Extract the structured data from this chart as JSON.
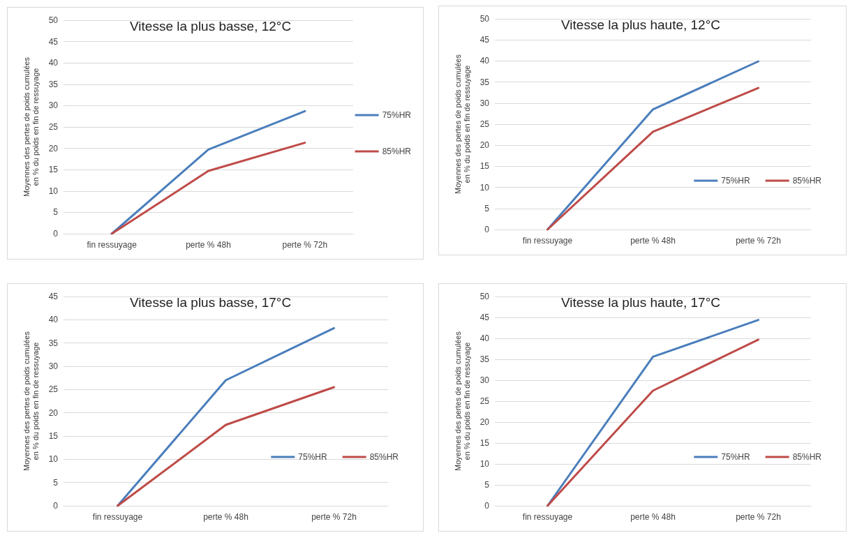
{
  "chart_data": [
    {
      "type": "line",
      "title": "Vitesse la plus basse, 12°C",
      "ylabel": "Moyennes des pertes de poids cumulées en % du poids en fin de ressuyage",
      "categories": [
        "fin ressuyage",
        "perte % 48h",
        "perte % 72h"
      ],
      "series": [
        {
          "name": "75%HR",
          "color": "#4a7ebb",
          "values": [
            0,
            19.7,
            28.7
          ]
        },
        {
          "name": "85%HR",
          "color": "#be4b48",
          "values": [
            0,
            14.7,
            21.3
          ]
        }
      ],
      "ylim": [
        0,
        50
      ],
      "yticks": [
        0,
        5,
        10,
        15,
        20,
        25,
        30,
        35,
        40,
        45,
        50
      ],
      "grid": "y",
      "legend": "right",
      "marker": "none",
      "line_style": "solid"
    },
    {
      "type": "line",
      "title": "Vitesse la plus haute, 12°C",
      "ylabel": "Moyennes des pertes de poids cumulées en % du poids en fin de ressuyage",
      "categories": [
        "fin ressuyage",
        "perte % 48h",
        "perte % 72h"
      ],
      "series": [
        {
          "name": "75%HR",
          "color": "#4a7ebb",
          "values": [
            0,
            28.5,
            39.9
          ]
        },
        {
          "name": "85%HR",
          "color": "#be4b48",
          "values": [
            0,
            23.2,
            33.6
          ]
        }
      ],
      "ylim": [
        0,
        50
      ],
      "yticks": [
        0,
        5,
        10,
        15,
        20,
        25,
        30,
        35,
        40,
        45,
        50
      ],
      "grid": "y",
      "legend": "bottom right",
      "marker": "none",
      "line_style": "solid"
    },
    {
      "type": "line",
      "title": "Vitesse la plus basse, 17°C",
      "ylabel": "Moyennes des pertes de poids cumulées en % du poids en fin de ressuyage",
      "categories": [
        "fin ressuyage",
        "perte % 48h",
        "perte % 72h"
      ],
      "series": [
        {
          "name": "75%HR",
          "color": "#4a7ebb",
          "values": [
            0,
            27.0,
            38.2
          ]
        },
        {
          "name": "85%HR",
          "color": "#be4b48",
          "values": [
            0,
            17.4,
            25.5
          ]
        }
      ],
      "ylim": [
        0,
        45
      ],
      "yticks": [
        0,
        5,
        10,
        15,
        20,
        25,
        30,
        35,
        40,
        45
      ],
      "grid": "y",
      "legend": "bottom right",
      "marker": "none",
      "line_style": "solid"
    },
    {
      "type": "line",
      "title": "Vitesse la plus haute, 17°C",
      "ylabel": "Moyennes des pertes de poids cumulées en % du poids en fin de ressuyage",
      "categories": [
        "fin ressuyage",
        "perte % 48h",
        "perte % 72h"
      ],
      "series": [
        {
          "name": "75%HR",
          "color": "#4a7ebb",
          "values": [
            0,
            35.6,
            44.4
          ]
        },
        {
          "name": "85%HR",
          "color": "#be4b48",
          "values": [
            0,
            27.5,
            39.7
          ]
        }
      ],
      "ylim": [
        0,
        50
      ],
      "yticks": [
        0,
        5,
        10,
        15,
        20,
        25,
        30,
        35,
        40,
        45,
        50
      ],
      "grid": "y",
      "legend": "bottom right",
      "marker": "none",
      "line_style": "solid"
    }
  ]
}
